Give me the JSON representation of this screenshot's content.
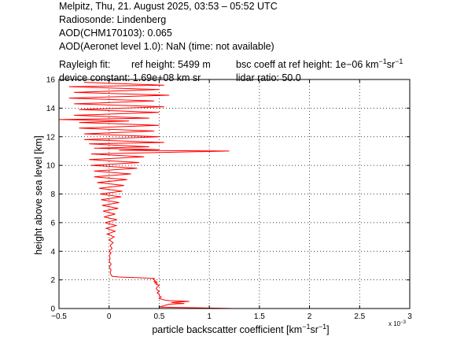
{
  "header": {
    "title_line": "Melpitz, Thu, 21. August 2025, 03:53 – 05:52 UTC",
    "radiosonde": "Radiosonde: Lindenberg",
    "aod_chm": "AOD(CHM170103): 0.065",
    "aod_aeronet": "AOD(Aeronet level 1.0): NaN   (time: not available)",
    "rayleigh_label": "Rayleigh fit:",
    "ref_height": "ref height: 5499 m",
    "bsc_coeff": "bsc coeff at ref height: 1e−06 km",
    "bsc_unit_exp1": "−1",
    "bsc_unit_sr": "sr",
    "bsc_unit_exp2": "−1",
    "device_constant": "device constant: 1.69e+08 km sr",
    "lidar_ratio": "lidar ratio: 50.0"
  },
  "chart_data": {
    "type": "line",
    "xlabel_main": "particle backscatter coefficient [km",
    "xlabel_exp1": "−1",
    "xlabel_sr": "sr",
    "xlabel_exp2": "−1",
    "xlabel_end": "]",
    "ylabel": "height above sea level [km]",
    "x_multiplier_text": "x 10",
    "x_multiplier_exp": "−3",
    "xlim": [
      -0.5,
      3
    ],
    "ylim": [
      0,
      16
    ],
    "xticks": [
      -0.5,
      0,
      0.5,
      1,
      1.5,
      2,
      2.5,
      3
    ],
    "xtick_labels": [
      "−0.5",
      "0",
      "0.5",
      "1",
      "1.5",
      "2",
      "2.5",
      "3"
    ],
    "yticks": [
      0,
      2,
      4,
      6,
      8,
      10,
      12,
      14,
      16
    ],
    "ytick_labels": [
      "0",
      "2",
      "4",
      "6",
      "8",
      "10",
      "12",
      "14",
      "16"
    ],
    "grid": true,
    "series": [
      {
        "color": "#ff0000",
        "points": [
          [
            1.25,
            0.0
          ],
          [
            0.9,
            0.05
          ],
          [
            0.5,
            0.1
          ],
          [
            0.55,
            0.2
          ],
          [
            0.6,
            0.3
          ],
          [
            0.75,
            0.35
          ],
          [
            0.62,
            0.42
          ],
          [
            0.8,
            0.5
          ],
          [
            0.6,
            0.55
          ],
          [
            0.55,
            0.6
          ],
          [
            0.5,
            0.7
          ],
          [
            0.52,
            0.8
          ],
          [
            0.5,
            0.9
          ],
          [
            0.5,
            1.0
          ],
          [
            0.48,
            1.1
          ],
          [
            0.5,
            1.2
          ],
          [
            0.48,
            1.3
          ],
          [
            0.47,
            1.4
          ],
          [
            0.48,
            1.5
          ],
          [
            0.5,
            1.6
          ],
          [
            0.47,
            1.7
          ],
          [
            0.48,
            1.75
          ],
          [
            0.45,
            1.8
          ],
          [
            0.48,
            1.85
          ],
          [
            0.45,
            1.9
          ],
          [
            0.46,
            1.95
          ],
          [
            0.44,
            2.05
          ],
          [
            0.45,
            2.1
          ],
          [
            0.3,
            2.15
          ],
          [
            0.1,
            2.2
          ],
          [
            0.03,
            2.25
          ],
          [
            0.02,
            2.35
          ],
          [
            0.01,
            2.5
          ],
          [
            0.02,
            2.7
          ],
          [
            0.0,
            2.9
          ],
          [
            0.02,
            3.1
          ],
          [
            0.0,
            3.3
          ],
          [
            0.01,
            3.5
          ],
          [
            0.0,
            3.7
          ],
          [
            0.02,
            3.9
          ],
          [
            0.0,
            4.0
          ],
          [
            0.03,
            4.2
          ],
          [
            0.01,
            4.4
          ],
          [
            0.04,
            4.6
          ],
          [
            0.0,
            4.8
          ],
          [
            0.05,
            5.0
          ],
          [
            -0.02,
            5.2
          ],
          [
            0.06,
            5.4
          ],
          [
            -0.03,
            5.6
          ],
          [
            0.07,
            5.8
          ],
          [
            -0.04,
            6.0
          ],
          [
            0.08,
            6.2
          ],
          [
            -0.05,
            6.4
          ],
          [
            0.06,
            6.6
          ],
          [
            -0.06,
            6.8
          ],
          [
            0.09,
            7.0
          ],
          [
            -0.07,
            7.2
          ],
          [
            0.1,
            7.4
          ],
          [
            -0.08,
            7.6
          ],
          [
            0.12,
            7.8
          ],
          [
            -0.09,
            8.0
          ],
          [
            0.13,
            8.2
          ],
          [
            -0.1,
            8.4
          ],
          [
            0.15,
            8.6
          ],
          [
            -0.12,
            8.8
          ],
          [
            0.18,
            9.0
          ],
          [
            -0.15,
            9.2
          ],
          [
            0.22,
            9.4
          ],
          [
            -0.15,
            9.6
          ],
          [
            0.28,
            9.8
          ],
          [
            -0.18,
            10.0
          ],
          [
            0.3,
            10.2
          ],
          [
            -0.2,
            10.4
          ],
          [
            0.35,
            10.6
          ],
          [
            -0.18,
            10.8
          ],
          [
            1.2,
            11.0
          ],
          [
            0.1,
            11.05
          ],
          [
            0.5,
            11.1
          ],
          [
            -0.15,
            11.2
          ],
          [
            0.4,
            11.3
          ],
          [
            -0.2,
            11.5
          ],
          [
            0.55,
            11.6
          ],
          [
            -0.25,
            11.8
          ],
          [
            0.5,
            12.0
          ],
          [
            -0.25,
            12.2
          ],
          [
            0.45,
            12.4
          ],
          [
            -0.3,
            12.6
          ],
          [
            0.5,
            12.8
          ],
          [
            -0.3,
            13.0
          ],
          [
            0.2,
            13.1
          ],
          [
            -0.5,
            13.2
          ],
          [
            0.4,
            13.3
          ],
          [
            -0.35,
            13.5
          ],
          [
            0.5,
            13.7
          ],
          [
            -0.3,
            13.9
          ],
          [
            0.55,
            14.1
          ],
          [
            -0.35,
            14.3
          ],
          [
            0.45,
            14.5
          ],
          [
            -0.4,
            14.7
          ],
          [
            0.6,
            14.9
          ],
          [
            -0.35,
            15.1
          ],
          [
            0.5,
            15.3
          ],
          [
            -0.4,
            15.5
          ],
          [
            0.55,
            15.6
          ],
          [
            -0.25,
            15.8
          ]
        ]
      }
    ]
  }
}
